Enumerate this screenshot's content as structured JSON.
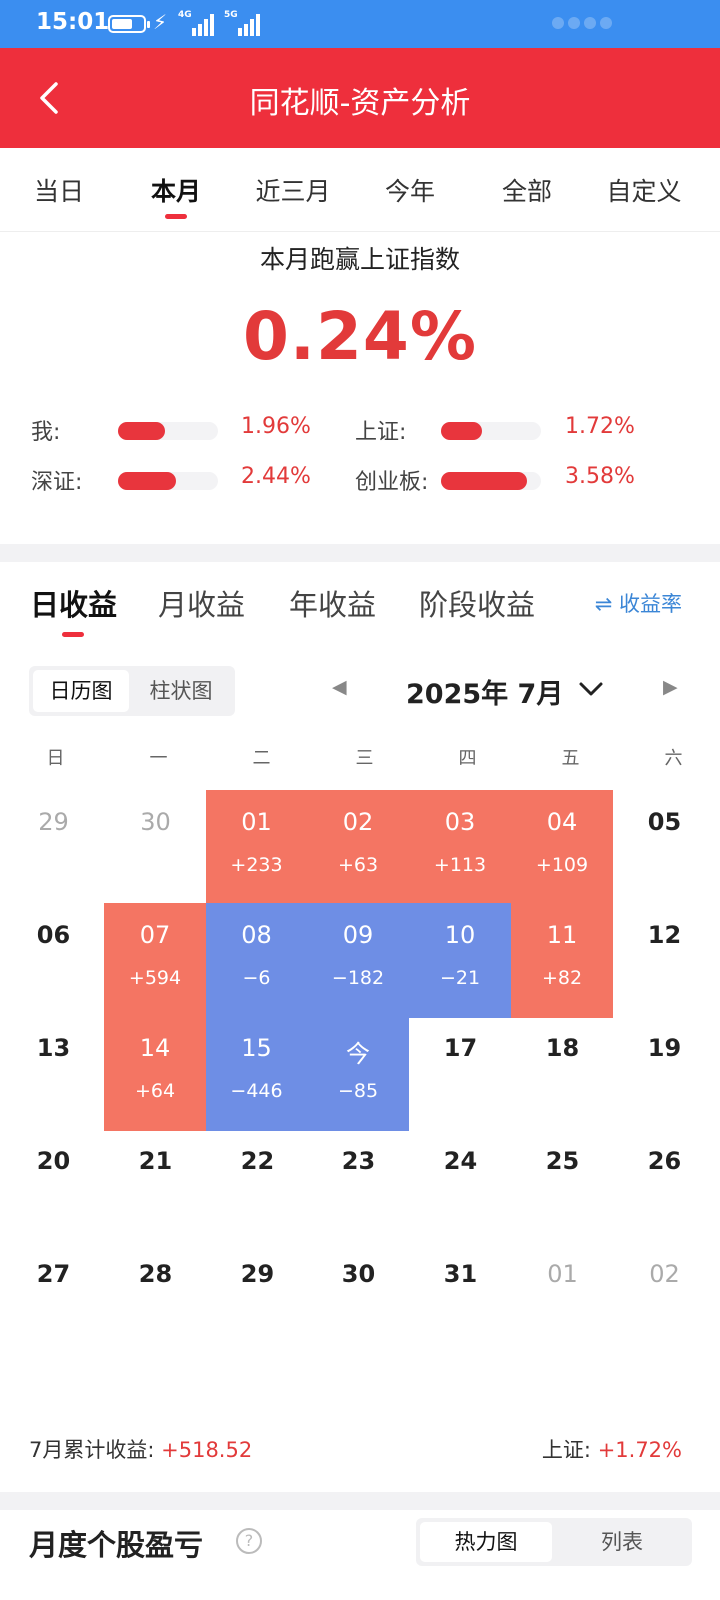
{
  "status_bar": {
    "time": "15:01",
    "network_4g": "4G",
    "network_5g": "5G",
    "icons": [
      "battery-charging-icon",
      "signal-4g-icon",
      "signal-5g-icon"
    ]
  },
  "header": {
    "title": "同花顺-资产分析",
    "back_icon": "chevron-left-icon",
    "bg_color": "#ee2f3c"
  },
  "period_tabs": [
    {
      "label": "当日"
    },
    {
      "label": "本月",
      "active": true
    },
    {
      "label": "近三月"
    },
    {
      "label": "今年"
    },
    {
      "label": "全部"
    },
    {
      "label": "自定义"
    }
  ],
  "comparison": {
    "title": "本月跑赢上证指数",
    "value": "0.24%",
    "rows": [
      {
        "label": "我:",
        "value": "1.96%",
        "fill": 0.47
      },
      {
        "label": "上证:",
        "value": "1.72%",
        "fill": 0.41
      },
      {
        "label": "深证:",
        "value": "2.44%",
        "fill": 0.58
      },
      {
        "label": "创业板:",
        "value": "3.58%",
        "fill": 0.86
      }
    ]
  },
  "earnings": {
    "tabs": [
      {
        "label": "日收益",
        "active": true
      },
      {
        "label": "月收益"
      },
      {
        "label": "年收益"
      },
      {
        "label": "阶段收益"
      }
    ],
    "rate_toggle": "⇌ 收益率",
    "view_toggle": [
      {
        "label": "日历图",
        "active": true
      },
      {
        "label": "柱状图"
      }
    ],
    "month_label": "2025年 7月",
    "prev_icon": "◀",
    "next_icon": "▶",
    "weekdays": [
      "日",
      "一",
      "二",
      "三",
      "四",
      "五",
      "六"
    ],
    "calendar": [
      [
        {
          "day": "29",
          "type": "other"
        },
        {
          "day": "30",
          "type": "other"
        },
        {
          "day": "01",
          "type": "up",
          "value": "+233"
        },
        {
          "day": "02",
          "type": "up",
          "value": "+63"
        },
        {
          "day": "03",
          "type": "up",
          "value": "+113"
        },
        {
          "day": "04",
          "type": "up",
          "value": "+109"
        },
        {
          "day": "05",
          "type": "normal"
        }
      ],
      [
        {
          "day": "06",
          "type": "normal"
        },
        {
          "day": "07",
          "type": "up",
          "value": "+594"
        },
        {
          "day": "08",
          "type": "down",
          "value": "−6"
        },
        {
          "day": "09",
          "type": "down",
          "value": "−182"
        },
        {
          "day": "10",
          "type": "down",
          "value": "−21"
        },
        {
          "day": "11",
          "type": "up",
          "value": "+82"
        },
        {
          "day": "12",
          "type": "normal"
        }
      ],
      [
        {
          "day": "13",
          "type": "normal"
        },
        {
          "day": "14",
          "type": "up",
          "value": "+64"
        },
        {
          "day": "15",
          "type": "down",
          "value": "−446"
        },
        {
          "day": "今",
          "type": "down",
          "value": "−85"
        },
        {
          "day": "17",
          "type": "normal"
        },
        {
          "day": "18",
          "type": "normal"
        },
        {
          "day": "19",
          "type": "normal"
        }
      ],
      [
        {
          "day": "20",
          "type": "normal"
        },
        {
          "day": "21",
          "type": "normal"
        },
        {
          "day": "22",
          "type": "normal"
        },
        {
          "day": "23",
          "type": "normal"
        },
        {
          "day": "24",
          "type": "normal"
        },
        {
          "day": "25",
          "type": "normal"
        },
        {
          "day": "26",
          "type": "normal"
        }
      ],
      [
        {
          "day": "27",
          "type": "normal"
        },
        {
          "day": "28",
          "type": "normal"
        },
        {
          "day": "29",
          "type": "normal"
        },
        {
          "day": "30",
          "type": "normal"
        },
        {
          "day": "31",
          "type": "normal"
        },
        {
          "day": "01",
          "type": "other"
        },
        {
          "day": "02",
          "type": "other"
        }
      ]
    ],
    "colors": {
      "up": "#f47563",
      "down": "#6e8ee5"
    },
    "summary": {
      "left_label": "7月累计收益:",
      "left_value": "+518.52",
      "right_label": "上证:",
      "right_value": "+1.72%"
    }
  },
  "monthly_stocks": {
    "title": "月度个股盈亏",
    "help_icon": "?",
    "toggle": [
      {
        "label": "热力图",
        "active": true
      },
      {
        "label": "列表"
      }
    ]
  }
}
